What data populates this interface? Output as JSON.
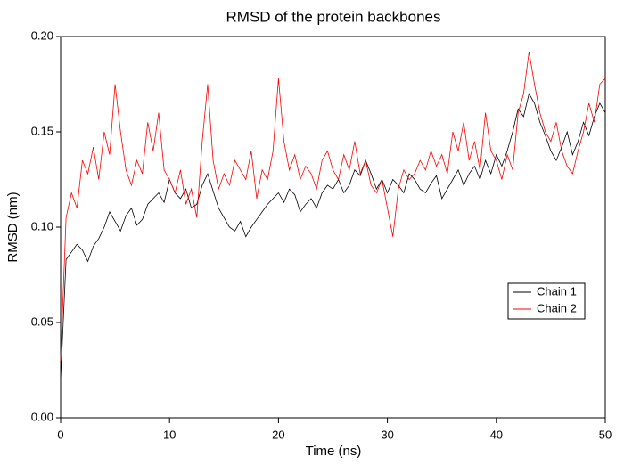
{
  "chart_data": {
    "type": "line",
    "title": "RMSD of the protein backbones",
    "x_label": "Time (ns)",
    "y_label": "RMSD (nm)",
    "x": [
      0,
      0.5,
      1,
      1.5,
      2,
      2.5,
      3,
      3.5,
      4,
      4.5,
      5,
      5.5,
      6,
      6.5,
      7,
      7.5,
      8,
      8.5,
      9,
      9.5,
      10,
      10.5,
      11,
      11.5,
      12,
      12.5,
      13,
      13.5,
      14,
      14.5,
      15,
      15.5,
      16,
      16.5,
      17,
      17.5,
      18,
      18.5,
      19,
      19.5,
      20,
      20.5,
      21,
      21.5,
      22,
      22.5,
      23,
      23.5,
      24,
      24.5,
      25,
      25.5,
      26,
      26.5,
      27,
      27.5,
      28,
      28.5,
      29,
      29.5,
      30,
      30.5,
      31,
      31.5,
      32,
      32.5,
      33,
      33.5,
      34,
      34.5,
      35,
      35.5,
      36,
      36.5,
      37,
      37.5,
      38,
      38.5,
      39,
      39.5,
      40,
      40.5,
      41,
      41.5,
      42,
      42.5,
      43,
      43.5,
      44,
      44.5,
      45,
      45.5,
      46,
      46.5,
      47,
      47.5,
      48,
      48.5,
      49,
      49.5,
      50
    ],
    "series": [
      {
        "name": "Chain 1",
        "color": "#000000",
        "values": [
          0.02,
          0.083,
          0.087,
          0.091,
          0.088,
          0.082,
          0.09,
          0.094,
          0.1,
          0.108,
          0.103,
          0.098,
          0.106,
          0.11,
          0.101,
          0.104,
          0.112,
          0.115,
          0.118,
          0.113,
          0.125,
          0.118,
          0.115,
          0.12,
          0.11,
          0.112,
          0.122,
          0.128,
          0.119,
          0.11,
          0.105,
          0.1,
          0.098,
          0.103,
          0.095,
          0.1,
          0.104,
          0.108,
          0.112,
          0.115,
          0.118,
          0.113,
          0.12,
          0.117,
          0.108,
          0.112,
          0.115,
          0.11,
          0.118,
          0.122,
          0.12,
          0.125,
          0.118,
          0.122,
          0.13,
          0.127,
          0.135,
          0.128,
          0.12,
          0.125,
          0.118,
          0.125,
          0.122,
          0.118,
          0.128,
          0.125,
          0.12,
          0.118,
          0.123,
          0.127,
          0.115,
          0.12,
          0.125,
          0.13,
          0.122,
          0.128,
          0.132,
          0.125,
          0.135,
          0.128,
          0.138,
          0.132,
          0.14,
          0.15,
          0.162,
          0.158,
          0.17,
          0.165,
          0.155,
          0.148,
          0.14,
          0.135,
          0.142,
          0.15,
          0.138,
          0.145,
          0.155,
          0.148,
          0.158,
          0.165,
          0.16
        ]
      },
      {
        "name": "Chain 2",
        "color": "#ff0000",
        "values": [
          0.03,
          0.105,
          0.118,
          0.11,
          0.135,
          0.128,
          0.142,
          0.125,
          0.15,
          0.138,
          0.175,
          0.15,
          0.13,
          0.122,
          0.135,
          0.128,
          0.155,
          0.14,
          0.16,
          0.13,
          0.125,
          0.118,
          0.13,
          0.112,
          0.12,
          0.105,
          0.145,
          0.175,
          0.135,
          0.12,
          0.128,
          0.122,
          0.135,
          0.13,
          0.125,
          0.14,
          0.115,
          0.13,
          0.125,
          0.14,
          0.178,
          0.145,
          0.13,
          0.138,
          0.125,
          0.132,
          0.128,
          0.12,
          0.135,
          0.14,
          0.13,
          0.125,
          0.138,
          0.13,
          0.145,
          0.128,
          0.135,
          0.122,
          0.118,
          0.125,
          0.11,
          0.095,
          0.12,
          0.13,
          0.125,
          0.128,
          0.135,
          0.13,
          0.14,
          0.132,
          0.138,
          0.128,
          0.15,
          0.14,
          0.155,
          0.135,
          0.145,
          0.13,
          0.16,
          0.14,
          0.135,
          0.125,
          0.138,
          0.13,
          0.16,
          0.17,
          0.192,
          0.175,
          0.16,
          0.15,
          0.145,
          0.155,
          0.14,
          0.132,
          0.128,
          0.14,
          0.15,
          0.165,
          0.155,
          0.175,
          0.178
        ]
      }
    ],
    "xlim": [
      0,
      50
    ],
    "xticks": [
      0,
      10,
      20,
      30,
      40,
      50
    ],
    "ylim": [
      0,
      0.2
    ],
    "yticks": [
      {
        "value": 0,
        "label": "0.00"
      },
      0.05,
      {
        "value": 0.1,
        "label": "0.10"
      },
      0.15,
      {
        "value": 0.2,
        "label": "0.20"
      }
    ],
    "grid": false,
    "legend": "right"
  }
}
